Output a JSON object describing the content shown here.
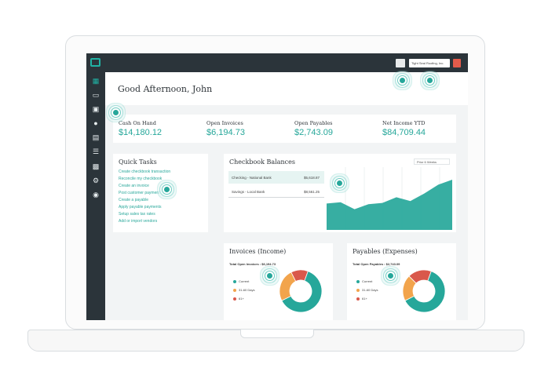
{
  "greeting": "Good Afternoon, John",
  "topbar": {
    "company": "Tight Seal Roofing, Inc."
  },
  "kpis": [
    {
      "label": "Cash On Hand",
      "value": "$14,180.12"
    },
    {
      "label": "Open Invoices",
      "value": "$6,194.73"
    },
    {
      "label": "Open Payables",
      "value": "$2,743.09"
    },
    {
      "label": "Net Income YTD",
      "value": "$84,709.44"
    }
  ],
  "quick_tasks": {
    "title": "Quick Tasks",
    "items": [
      "Create checkbook transaction",
      "Reconcile my checkbook",
      "Create an invoice",
      "Post customer payment",
      "Create a payable",
      "Apply payable payments",
      "Setup sales tax rates",
      "Add or import vendors"
    ]
  },
  "checkbook": {
    "title": "Checkbook Balances",
    "range": "Prior 6 Weeks",
    "accounts": [
      {
        "name": "Checking - National Bank",
        "amount": "$5,618.87"
      },
      {
        "name": "Savings - Local Bank",
        "amount": "$8,561.25"
      }
    ]
  },
  "invoices": {
    "title": "Invoices (Income)",
    "total_line": "Total Open Invoices : $6,194.73",
    "legend": [
      "Current",
      "31-60 Days",
      "61+"
    ]
  },
  "payables": {
    "title": "Payables (Expenses)",
    "total_line": "Total Open Payables : $2,743.09",
    "legend": [
      "Current",
      "31-60 Days",
      "61+"
    ]
  },
  "colors": {
    "teal": "#26a79a",
    "orange": "#f2a44c",
    "red": "#d9584b",
    "dark": "#2b343a"
  },
  "icons": [
    "dashboard-icon",
    "checkbook-icon",
    "card-icon",
    "customers-icon",
    "invoice-icon",
    "list-icon",
    "reports-icon",
    "settings-icon",
    "help-icon"
  ],
  "chart_data": [
    {
      "type": "area",
      "y": [
        0.42,
        0.44,
        0.33,
        0.41,
        0.43,
        0.52,
        0.46,
        0.58,
        0.72,
        0.8
      ],
      "grid": true
    },
    {
      "type": "pie",
      "labels": [
        "Current",
        "31-60 Days",
        "61+"
      ],
      "values": [
        62,
        25,
        13
      ]
    },
    {
      "type": "pie",
      "labels": [
        "Current",
        "31-60 Days",
        "61+"
      ],
      "values": [
        62,
        20,
        18
      ]
    }
  ]
}
